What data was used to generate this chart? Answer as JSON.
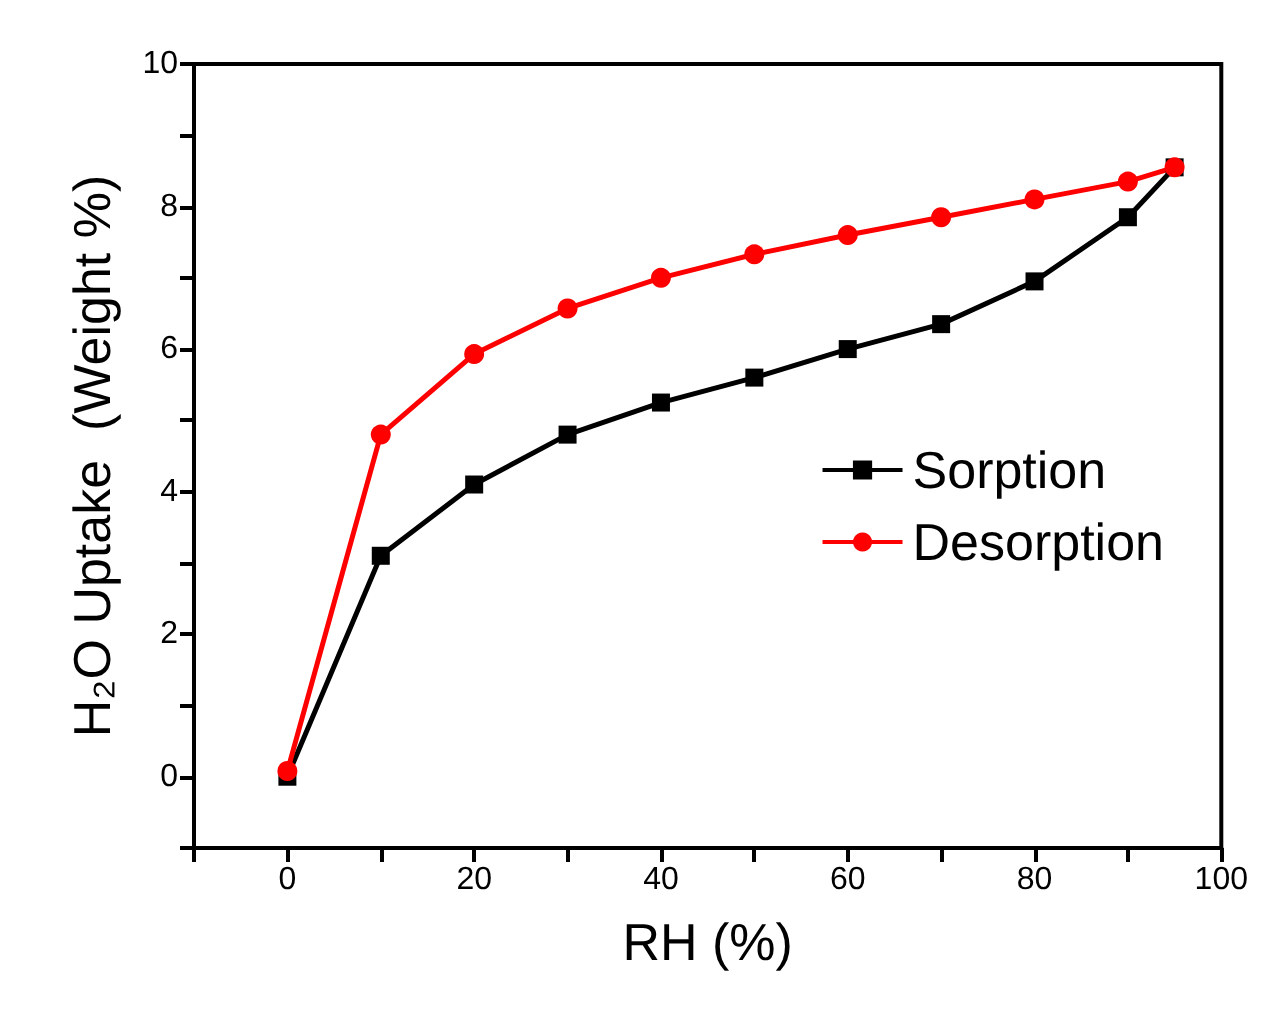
{
  "chart_data": {
    "type": "line",
    "xlabel": "RH (%)",
    "ylabel": "H₂O Uptake  (Weight %)",
    "x": [
      0,
      10,
      20,
      30,
      40,
      50,
      60,
      70,
      80,
      90,
      95
    ],
    "series": [
      {
        "name": "Sorption",
        "color": "#000000",
        "marker": "square",
        "values": [
          0,
          3.1,
          4.1,
          4.8,
          5.25,
          5.6,
          6.0,
          6.35,
          6.95,
          7.85,
          8.55
        ]
      },
      {
        "name": "Desorption",
        "color": "#ff0000",
        "marker": "circle",
        "values": [
          0.08,
          4.8,
          5.93,
          6.57,
          7.0,
          7.33,
          7.6,
          7.85,
          8.1,
          8.35,
          8.55
        ]
      }
    ],
    "xlim": [
      -10,
      100
    ],
    "xticks": [
      {
        "value": -10,
        "label": null
      },
      0,
      {
        "value": 10,
        "label": null
      },
      20,
      {
        "value": 30,
        "label": null
      },
      40,
      {
        "value": 50,
        "label": null
      },
      60,
      {
        "value": 70,
        "label": null
      },
      80,
      {
        "value": 90,
        "label": null
      },
      100
    ],
    "ylim": [
      -1,
      10
    ],
    "yticks": [
      {
        "value": -1,
        "label": null
      },
      0,
      {
        "value": 1,
        "label": null
      },
      2,
      {
        "value": 3,
        "label": null
      },
      4,
      {
        "value": 5,
        "label": null
      },
      6,
      {
        "value": 7,
        "label": null
      },
      8,
      {
        "value": 9,
        "label": null
      },
      10
    ],
    "legend": "right",
    "grid": false,
    "line_style": "solid"
  }
}
